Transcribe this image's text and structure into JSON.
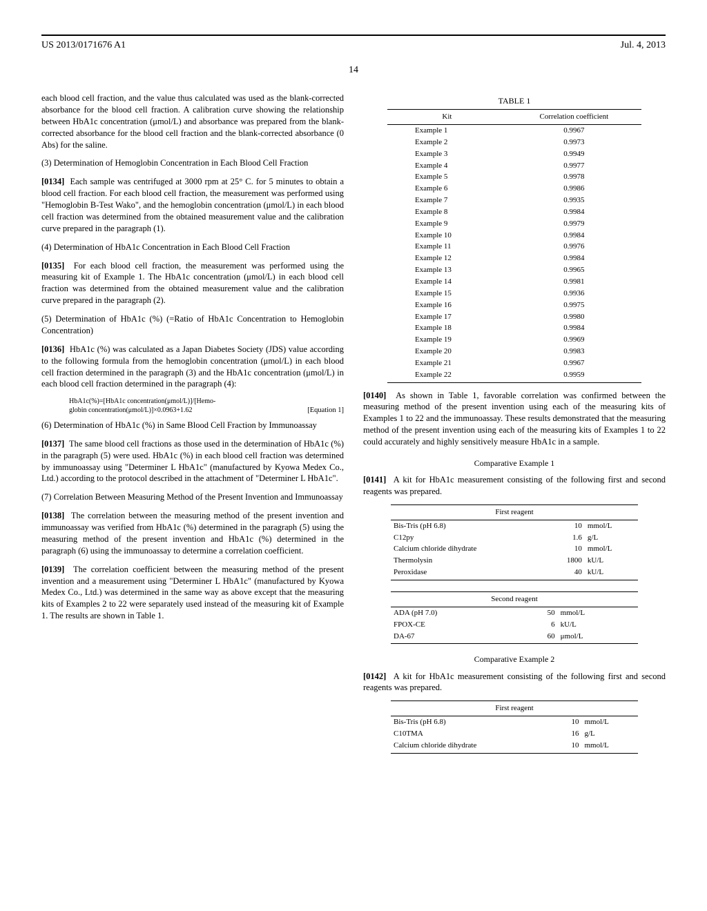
{
  "header": {
    "doc_number": "US 2013/0171676 A1",
    "date": "Jul. 4, 2013",
    "page_number": "14"
  },
  "left_col": {
    "intro": "each blood cell fraction, and the value thus calculated was used as the blank-corrected absorbance for the blood cell fraction. A calibration curve showing the relationship between HbA1c concentration (μmol/L) and absorbance was prepared from the blank-corrected absorbance for the blood cell fraction and the blank-corrected absorbance (0 Abs) for the saline.",
    "s3_head": "(3) Determination of Hemoglobin Concentration in Each Blood Cell Fraction",
    "p0134_num": "[0134]",
    "p0134": "Each sample was centrifuged at 3000 rpm at 25° C. for 5 minutes to obtain a blood cell fraction. For each blood cell fraction, the measurement was performed using \"Hemoglobin B-Test Wako\", and the hemoglobin concentration (μmol/L) in each blood cell fraction was determined from the obtained measurement value and the calibration curve prepared in the paragraph (1).",
    "s4_head": "(4) Determination of HbA1c Concentration in Each Blood Cell Fraction",
    "p0135_num": "[0135]",
    "p0135": "For each blood cell fraction, the measurement was performed using the measuring kit of Example 1. The HbA1c concentration (μmol/L) in each blood cell fraction was determined from the obtained measurement value and the calibration curve prepared in the paragraph (2).",
    "s5_head": "(5) Determination of HbA1c (%) (=Ratio of HbA1c Concentration to Hemoglobin Concentration)",
    "p0136_num": "[0136]",
    "p0136": "HbA1c (%) was calculated as a Japan Diabetes Society (JDS) value according to the following formula from the hemoglobin concentration (μmol/L) in each blood cell fraction determined in the paragraph (3) and the HbA1c concentration (μmol/L) in each blood cell fraction determined in the paragraph (4):",
    "equation_l1": "HbA1c(%)=[HbA1c concentration(μmol/L)]/[Hemo-",
    "equation_l2": "globin concentration(μmol/L)]×0.0963+1.62",
    "equation_label": "[Equation 1]",
    "s6_head": "(6) Determination of HbA1c (%) in Same Blood Cell Fraction by Immunoassay",
    "p0137_num": "[0137]",
    "p0137": "The same blood cell fractions as those used in the determination of HbA1c (%) in the paragraph (5) were used. HbA1c (%) in each blood cell fraction was determined by immunoassay using \"Determiner L HbA1c\" (manufactured by Kyowa Medex Co., Ltd.) according to the protocol described in the attachment of \"Determiner L HbA1c\".",
    "s7_head": "(7) Correlation Between Measuring Method of the Present Invention and Immunoassay",
    "p0138_num": "[0138]",
    "p0138": "The correlation between the measuring method of the present invention and immunoassay was verified from HbA1c (%) determined in the paragraph (5) using the measuring method of the present invention and HbA1c (%) determined in the paragraph (6) using the immunoassay to determine a correlation coefficient.",
    "p0139_num": "[0139]",
    "p0139": "The correlation coefficient between the measuring method of the present invention and a measurement using \"Determiner L HbA1c\" (manufactured by Kyowa Medex Co., Ltd.) was determined in the same way as above except that the measuring kits of Examples 2 to 22 were separately used instead of the measuring kit of Example 1. The results are shown in Table 1."
  },
  "table1": {
    "title": "TABLE 1",
    "col1": "Kit",
    "col2": "Correlation coefficient",
    "rows": [
      [
        "Example 1",
        "0.9967"
      ],
      [
        "Example 2",
        "0.9973"
      ],
      [
        "Example 3",
        "0.9949"
      ],
      [
        "Example 4",
        "0.9977"
      ],
      [
        "Example 5",
        "0.9978"
      ],
      [
        "Example 6",
        "0.9986"
      ],
      [
        "Example 7",
        "0.9935"
      ],
      [
        "Example 8",
        "0.9984"
      ],
      [
        "Example 9",
        "0.9979"
      ],
      [
        "Example 10",
        "0.9984"
      ],
      [
        "Example 11",
        "0.9976"
      ],
      [
        "Example 12",
        "0.9984"
      ],
      [
        "Example 13",
        "0.9965"
      ],
      [
        "Example 14",
        "0.9981"
      ],
      [
        "Example 15",
        "0.9936"
      ],
      [
        "Example 16",
        "0.9975"
      ],
      [
        "Example 17",
        "0.9980"
      ],
      [
        "Example 18",
        "0.9984"
      ],
      [
        "Example 19",
        "0.9969"
      ],
      [
        "Example 20",
        "0.9983"
      ],
      [
        "Example 21",
        "0.9967"
      ],
      [
        "Example 22",
        "0.9959"
      ]
    ]
  },
  "right_col": {
    "p0140_num": "[0140]",
    "p0140": "As shown in Table 1, favorable correlation was confirmed between the measuring method of the present invention using each of the measuring kits of Examples 1 to 22 and the immunoassay. These results demonstrated that the measuring method of the present invention using each of the measuring kits of Examples 1 to 22 could accurately and highly sensitively measure HbA1c in a sample.",
    "comp1_head": "Comparative Example 1",
    "p0141_num": "[0141]",
    "p0141": "A kit for HbA1c measurement consisting of the following first and second reagents was prepared.",
    "comp2_head": "Comparative Example 2",
    "p0142_num": "[0142]",
    "p0142": "A kit for HbA1c measurement consisting of the following first and second reagents was prepared."
  },
  "reagent1_first": {
    "title": "First reagent",
    "rows": [
      [
        "Bis-Tris (pH 6.8)",
        "10",
        "mmol/L"
      ],
      [
        "C12py",
        "1.6",
        "g/L"
      ],
      [
        "Calcium chloride dihydrate",
        "10",
        "mmol/L"
      ],
      [
        "Thermolysin",
        "1800",
        "kU/L"
      ],
      [
        "Peroxidase",
        "40",
        "kU/L"
      ]
    ]
  },
  "reagent1_second": {
    "title": "Second reagent",
    "rows": [
      [
        "ADA (pH 7.0)",
        "50",
        "mmol/L"
      ],
      [
        "FPOX-CE",
        "6",
        "kU/L"
      ],
      [
        "DA-67",
        "60",
        "μmol/L"
      ]
    ]
  },
  "reagent2_first": {
    "title": "First reagent",
    "rows": [
      [
        "Bis-Tris (pH 6.8)",
        "10",
        "mmol/L"
      ],
      [
        "C10TMA",
        "16",
        "g/L"
      ],
      [
        "Calcium chloride dihydrate",
        "10",
        "mmol/L"
      ]
    ]
  }
}
